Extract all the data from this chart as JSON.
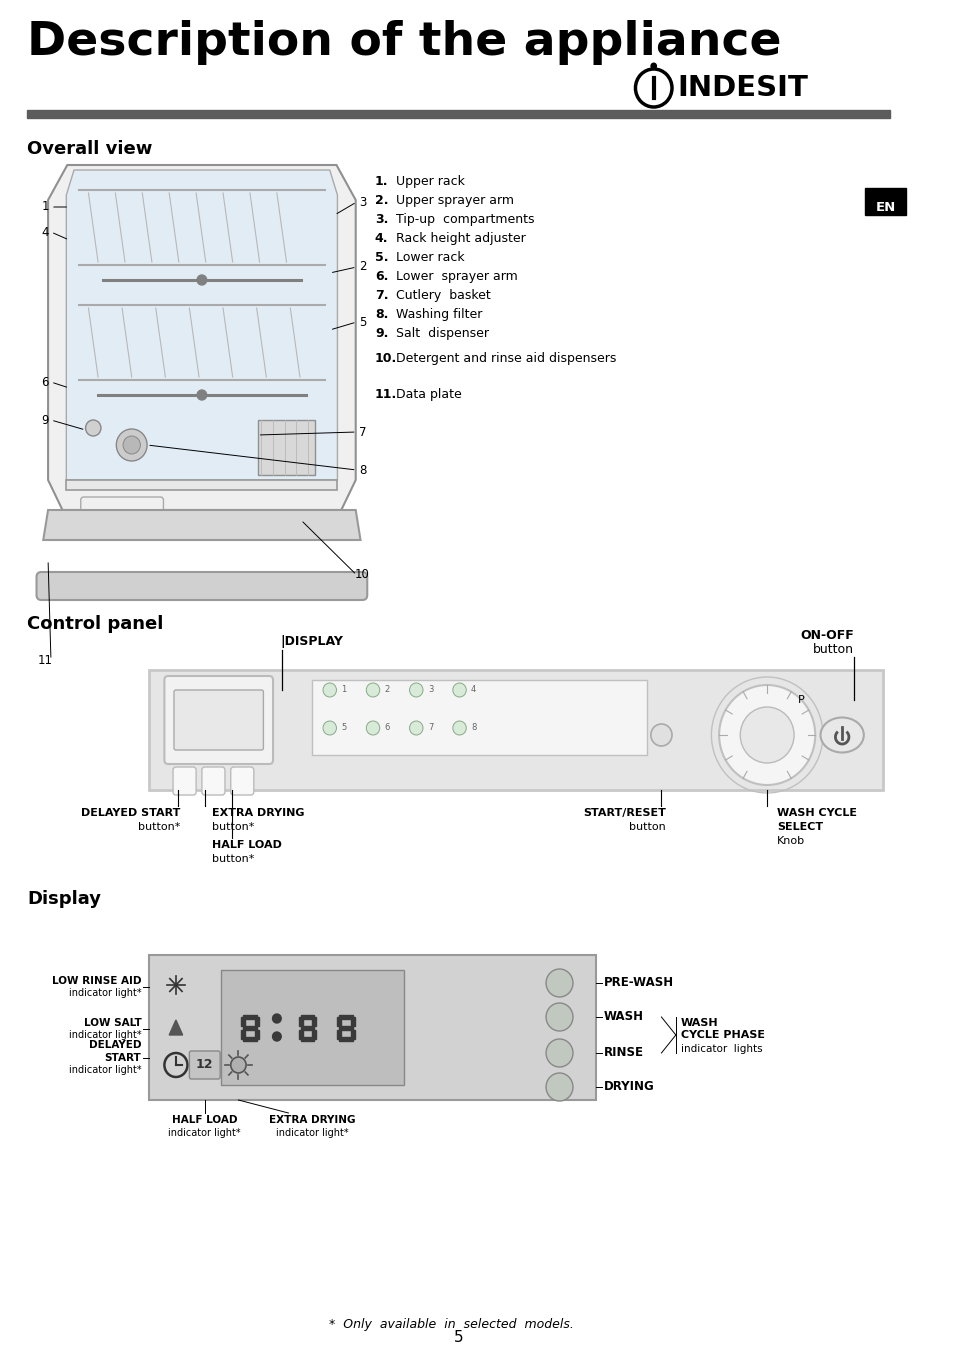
{
  "title": "Description of the appliance",
  "brand_text": "INDESIT",
  "overall_view_label": "Overall view",
  "control_panel_label": "Control panel",
  "display_label": "Display",
  "numbered_items": [
    "Upper rack",
    "Upper sprayer arm",
    "Tip-up  compartments",
    "Rack  height  adjuster",
    "Lower rack",
    "Lower  sprayer  arm",
    "Cutlery  basket",
    "Washing  filter",
    "Salt  dispenser",
    "Detergent  and  rinse  aid  dispensers",
    "Data  plate"
  ],
  "footnote": "*  Only  available  in  selected  models.",
  "page_number": "5",
  "en_label": "EN",
  "bg_color": "#ffffff",
  "separator_color": "#5c5c5c",
  "panel_bg": "#e6e6e6",
  "display_box_bg": "#d2d2d2"
}
